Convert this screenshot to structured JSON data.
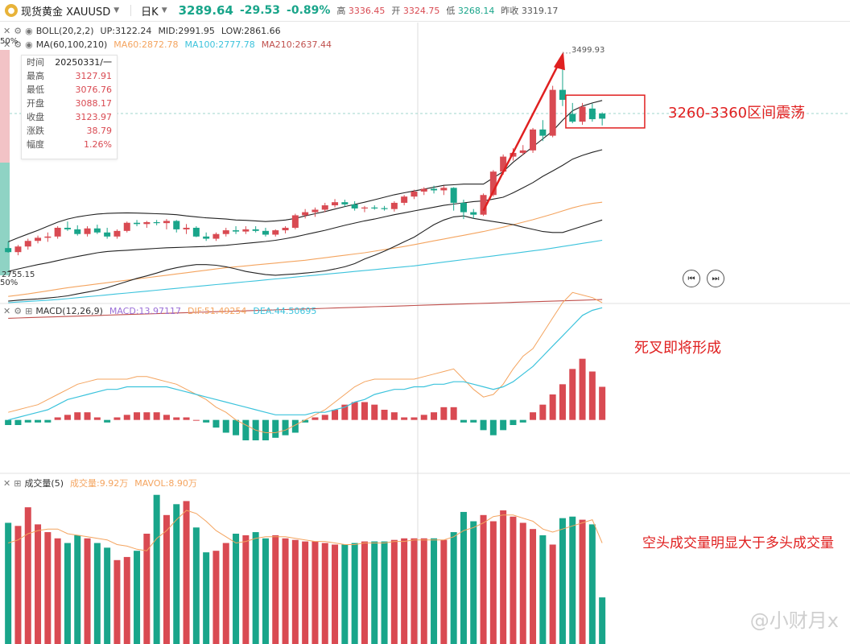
{
  "header": {
    "symbol": "现货黄金 XAUUSD",
    "period": "日K",
    "last_price": "3289.64",
    "change": "-29.53",
    "change_pct": "-0.89%",
    "high_label": "高",
    "high_value": "3336.45",
    "open_label": "开",
    "open_value": "3324.75",
    "low_label": "低",
    "low_value": "3268.14",
    "prev_close_label": "昨收",
    "prev_close_value": "3319.17"
  },
  "legends": {
    "boll": {
      "name": "BOLL(20,2,2)",
      "up": "UP:3122.24",
      "mid": "MID:2991.95",
      "low": "LOW:2861.66"
    },
    "ma": {
      "name": "MA(60,100,210)",
      "ma60": "MA60:2872.78",
      "ma100": "MA100:2777.78",
      "ma210": "MA210:2637.44"
    },
    "macd": {
      "name": "MACD(12,26,9)",
      "macd": "MACD:13.97117",
      "dif": "DIF:51.49254",
      "dea": "DEA:44.50695"
    },
    "vol": {
      "name": "成交量(5)",
      "vol": "成交量:9.92万",
      "mavol": "MAVOL:8.90万"
    }
  },
  "tooltip": {
    "rows": [
      {
        "k": "时间",
        "v": "20250331/一"
      },
      {
        "k": "最高",
        "v": "3127.91"
      },
      {
        "k": "最低",
        "v": "3076.76"
      },
      {
        "k": "开盘",
        "v": "3088.17"
      },
      {
        "k": "收盘",
        "v": "3123.97"
      },
      {
        "k": "涨跌",
        "v": "38.79"
      },
      {
        "k": "幅度",
        "v": "1.26%"
      }
    ]
  },
  "axis_labels": {
    "top_pct": "50%",
    "bottom_pct": "50%",
    "low_price": "2755.15",
    "high_price": "3499.93"
  },
  "annotations": {
    "range": "3260-3360区间震荡",
    "death_cross": "死叉即将形成",
    "volume_note": "空头成交量明显大于多头成交量"
  },
  "watermark": "@小财月x",
  "colors": {
    "up": "#d94a52",
    "down": "#19a58a",
    "annot": "#e02020",
    "ma60": "#f4a45f",
    "ma100": "#3cc3dc",
    "ma210": "#c0504d",
    "dif": "#f4a45f",
    "dea": "#3cc3dc"
  },
  "chart_data": [
    {
      "type": "candlestick",
      "title": "现货黄金 XAUUSD 日K",
      "ylim": [
        2755.15,
        3499.93
      ],
      "candles": [
        {
          "o": 2875,
          "h": 2895,
          "l": 2860,
          "c": 2862
        },
        {
          "o": 2862,
          "h": 2885,
          "l": 2852,
          "c": 2880
        },
        {
          "o": 2880,
          "h": 2905,
          "l": 2870,
          "c": 2898
        },
        {
          "o": 2898,
          "h": 2915,
          "l": 2890,
          "c": 2908
        },
        {
          "o": 2908,
          "h": 2925,
          "l": 2895,
          "c": 2912
        },
        {
          "o": 2912,
          "h": 2945,
          "l": 2905,
          "c": 2940
        },
        {
          "o": 2940,
          "h": 2960,
          "l": 2930,
          "c": 2935
        },
        {
          "o": 2935,
          "h": 2948,
          "l": 2915,
          "c": 2920
        },
        {
          "o": 2920,
          "h": 2945,
          "l": 2912,
          "c": 2938
        },
        {
          "o": 2938,
          "h": 2950,
          "l": 2920,
          "c": 2925
        },
        {
          "o": 2925,
          "h": 2940,
          "l": 2905,
          "c": 2912
        },
        {
          "o": 2912,
          "h": 2935,
          "l": 2905,
          "c": 2930
        },
        {
          "o": 2930,
          "h": 2960,
          "l": 2925,
          "c": 2956
        },
        {
          "o": 2956,
          "h": 2965,
          "l": 2945,
          "c": 2952
        },
        {
          "o": 2952,
          "h": 2962,
          "l": 2940,
          "c": 2958
        },
        {
          "o": 2958,
          "h": 2965,
          "l": 2948,
          "c": 2955
        },
        {
          "o": 2955,
          "h": 2968,
          "l": 2935,
          "c": 2962
        },
        {
          "o": 2962,
          "h": 2965,
          "l": 2925,
          "c": 2935
        },
        {
          "o": 2935,
          "h": 2952,
          "l": 2920,
          "c": 2940
        },
        {
          "o": 2940,
          "h": 2945,
          "l": 2910,
          "c": 2912
        },
        {
          "o": 2912,
          "h": 2925,
          "l": 2898,
          "c": 2905
        },
        {
          "o": 2905,
          "h": 2925,
          "l": 2898,
          "c": 2920
        },
        {
          "o": 2920,
          "h": 2940,
          "l": 2912,
          "c": 2932
        },
        {
          "o": 2932,
          "h": 2945,
          "l": 2920,
          "c": 2928
        },
        {
          "o": 2928,
          "h": 2945,
          "l": 2920,
          "c": 2935
        },
        {
          "o": 2935,
          "h": 2945,
          "l": 2925,
          "c": 2930
        },
        {
          "o": 2930,
          "h": 2940,
          "l": 2912,
          "c": 2918
        },
        {
          "o": 2918,
          "h": 2935,
          "l": 2912,
          "c": 2932
        },
        {
          "o": 2932,
          "h": 2945,
          "l": 2922,
          "c": 2940
        },
        {
          "o": 2940,
          "h": 2985,
          "l": 2935,
          "c": 2980
        },
        {
          "o": 2980,
          "h": 3000,
          "l": 2970,
          "c": 2990
        },
        {
          "o": 2990,
          "h": 3005,
          "l": 2975,
          "c": 2998
        },
        {
          "o": 2998,
          "h": 3020,
          "l": 2990,
          "c": 3012
        },
        {
          "o": 3012,
          "h": 3032,
          "l": 3005,
          "c": 3022
        },
        {
          "o": 3022,
          "h": 3030,
          "l": 3008,
          "c": 3015
        },
        {
          "o": 3015,
          "h": 3025,
          "l": 2995,
          "c": 3002
        },
        {
          "o": 3002,
          "h": 3010,
          "l": 2990,
          "c": 3005
        },
        {
          "o": 3005,
          "h": 3012,
          "l": 2998,
          "c": 3003
        },
        {
          "o": 3003,
          "h": 3010,
          "l": 2995,
          "c": 3000
        },
        {
          "o": 3000,
          "h": 3025,
          "l": 2992,
          "c": 3020
        },
        {
          "o": 3020,
          "h": 3045,
          "l": 3012,
          "c": 3040
        },
        {
          "o": 3040,
          "h": 3062,
          "l": 3032,
          "c": 3056
        },
        {
          "o": 3056,
          "h": 3070,
          "l": 3045,
          "c": 3065
        },
        {
          "o": 3065,
          "h": 3075,
          "l": 3050,
          "c": 3060
        },
        {
          "o": 3060,
          "h": 3075,
          "l": 3045,
          "c": 3068
        },
        {
          "o": 3068,
          "h": 3070,
          "l": 2995,
          "c": 3020
        },
        {
          "o": 3020,
          "h": 3030,
          "l": 2968,
          "c": 2990
        },
        {
          "o": 2990,
          "h": 3000,
          "l": 2970,
          "c": 2982
        },
        {
          "o": 2982,
          "h": 3050,
          "l": 2978,
          "c": 3045
        },
        {
          "o": 3045,
          "h": 3125,
          "l": 3040,
          "c": 3120
        },
        {
          "o": 3120,
          "h": 3175,
          "l": 3110,
          "c": 3168
        },
        {
          "o": 3168,
          "h": 3195,
          "l": 3155,
          "c": 3180
        },
        {
          "o": 3180,
          "h": 3205,
          "l": 3172,
          "c": 3188
        },
        {
          "o": 3188,
          "h": 3260,
          "l": 3180,
          "c": 3255
        },
        {
          "o": 3255,
          "h": 3285,
          "l": 3218,
          "c": 3235
        },
        {
          "o": 3235,
          "h": 3395,
          "l": 3230,
          "c": 3382
        },
        {
          "o": 3382,
          "h": 3499.93,
          "l": 3330,
          "c": 3350
        },
        {
          "o": 3305,
          "h": 3340,
          "l": 3275,
          "c": 3280
        },
        {
          "o": 3280,
          "h": 3340,
          "l": 3270,
          "c": 3328
        },
        {
          "o": 3322,
          "h": 3338,
          "l": 3280,
          "c": 3288
        },
        {
          "o": 3306,
          "h": 3310,
          "l": 3268,
          "c": 3289.64
        }
      ],
      "boll_up": [
        2895,
        2908,
        2920,
        2932,
        2945,
        2958,
        2968,
        2975,
        2980,
        2984,
        2986,
        2987,
        2988,
        2987,
        2986,
        2985,
        2984,
        2982,
        2978,
        2975,
        2972,
        2970,
        2968,
        2965,
        2964,
        2962,
        2960,
        2962,
        2965,
        2970,
        2978,
        2985,
        2992,
        3000,
        3008,
        3015,
        3022,
        3030,
        3038,
        3046,
        3052,
        3058,
        3064,
        3070,
        3076,
        3078,
        3080,
        3080,
        3080,
        3100,
        3120,
        3150,
        3175,
        3200,
        3225,
        3250,
        3285,
        3315,
        3330,
        3340,
        3348
      ],
      "boll_mid": [
        2800,
        2808,
        2815,
        2822,
        2828,
        2835,
        2842,
        2848,
        2854,
        2860,
        2864,
        2866,
        2868,
        2870,
        2872,
        2874,
        2876,
        2877,
        2878,
        2879,
        2880,
        2882,
        2884,
        2887,
        2890,
        2893,
        2896,
        2900,
        2905,
        2911,
        2918,
        2925,
        2932,
        2940,
        2948,
        2955,
        2962,
        2968,
        2975,
        2982,
        2988,
        2994,
        3000,
        3006,
        3012,
        3016,
        3020,
        3024,
        3026,
        3032,
        3038,
        3052,
        3068,
        3085,
        3105,
        3122,
        3140,
        3160,
        3172,
        3182,
        3190
      ],
      "boll_low": [
        2705,
        2708,
        2710,
        2712,
        2715,
        2718,
        2722,
        2728,
        2734,
        2740,
        2748,
        2758,
        2768,
        2778,
        2786,
        2795,
        2805,
        2812,
        2818,
        2822,
        2822,
        2820,
        2815,
        2808,
        2800,
        2795,
        2790,
        2788,
        2790,
        2792,
        2795,
        2798,
        2802,
        2808,
        2815,
        2825,
        2840,
        2852,
        2865,
        2880,
        2895,
        2910,
        2930,
        2950,
        2965,
        2975,
        2978,
        2970,
        2965,
        2960,
        2955,
        2950,
        2942,
        2935,
        2928,
        2925,
        2925,
        2935,
        2945,
        2955,
        2965
      ],
      "ma60": [
        2720,
        2724,
        2728,
        2733,
        2738,
        2743,
        2748,
        2752,
        2756,
        2760,
        2764,
        2768,
        2772,
        2776,
        2780,
        2784,
        2788,
        2792,
        2796,
        2800,
        2804,
        2808,
        2812,
        2815,
        2818,
        2821,
        2824,
        2827,
        2830,
        2833,
        2836,
        2840,
        2844,
        2848,
        2852,
        2856,
        2860,
        2865,
        2870,
        2875,
        2880,
        2886,
        2892,
        2898,
        2904,
        2910,
        2916,
        2922,
        2928,
        2935,
        2942,
        2950,
        2958,
        2966,
        2975,
        2984,
        2994,
        3004,
        3012,
        3018,
        3022
      ],
      "ma100": [
        2700,
        2702,
        2704,
        2706,
        2708,
        2710,
        2713,
        2716,
        2719,
        2722,
        2725,
        2728,
        2731,
        2734,
        2737,
        2740,
        2743,
        2746,
        2749,
        2752,
        2755,
        2758,
        2761,
        2764,
        2767,
        2770,
        2773,
        2776,
        2779,
        2782,
        2785,
        2788,
        2791,
        2794,
        2797,
        2800,
        2803,
        2806,
        2809,
        2812,
        2815,
        2818,
        2822,
        2826,
        2830,
        2834,
        2838,
        2842,
        2846,
        2850,
        2854,
        2858,
        2862,
        2866,
        2870,
        2875,
        2880,
        2885,
        2890,
        2895,
        2900
      ],
      "ma210": [
        2650,
        2651,
        2652,
        2653,
        2654,
        2655,
        2656,
        2657,
        2658,
        2659,
        2660,
        2661,
        2662,
        2663,
        2664,
        2665,
        2666,
        2667,
        2668,
        2669,
        2670,
        2671,
        2672,
        2673,
        2674,
        2675,
        2676,
        2677,
        2678,
        2679,
        2680,
        2681,
        2682,
        2683,
        2684,
        2685,
        2686,
        2687,
        2688,
        2689,
        2690,
        2691,
        2692,
        2693,
        2694,
        2695,
        2696,
        2697,
        2698,
        2699,
        2700,
        2701,
        2702,
        2703,
        2704,
        2705,
        2706,
        2707,
        2708,
        2709,
        2710
      ]
    },
    {
      "type": "bar",
      "title": "MACD(12,26,9)",
      "ylim": [
        -20,
        40
      ],
      "macd": [
        -2,
        -2,
        -1,
        -1,
        -1,
        1,
        2,
        3,
        3,
        1,
        -1,
        1,
        2,
        3,
        3,
        3,
        2,
        1,
        1,
        0,
        -1,
        -3,
        -5,
        -6,
        -8,
        -8,
        -8,
        -7,
        -6,
        -5,
        -1,
        1,
        2,
        4,
        6,
        7,
        7,
        6,
        4,
        3,
        1,
        1,
        2,
        3,
        5,
        5,
        -1,
        -1,
        -4,
        -6,
        -4,
        -2,
        -1,
        3,
        6,
        10,
        14,
        20,
        24,
        19,
        13
      ],
      "dif": [
        3,
        4,
        5,
        6,
        8,
        10,
        12,
        14,
        15,
        16,
        16,
        16,
        16,
        17,
        17,
        16,
        15,
        14,
        12,
        10,
        8,
        5,
        3,
        0,
        -2,
        -4,
        -5,
        -5,
        -4,
        -2,
        0,
        2,
        4,
        7,
        10,
        13,
        15,
        16,
        16,
        16,
        16,
        16,
        17,
        18,
        19,
        20,
        16,
        12,
        9,
        10,
        14,
        20,
        25,
        28,
        34,
        40,
        46,
        50,
        49,
        48,
        46
      ],
      "dea": [
        0,
        1,
        2,
        3,
        4,
        6,
        8,
        9,
        10,
        11,
        12,
        12,
        13,
        13,
        13,
        13,
        13,
        12,
        11,
        10,
        9,
        8,
        7,
        6,
        5,
        4,
        3,
        2,
        2,
        2,
        2,
        3,
        3,
        4,
        5,
        7,
        8,
        10,
        11,
        12,
        12,
        13,
        13,
        14,
        14,
        15,
        15,
        14,
        13,
        12,
        13,
        15,
        18,
        21,
        25,
        29,
        33,
        37,
        41,
        43,
        44
      ]
    },
    {
      "type": "bar",
      "title": "成交量(5)",
      "values": [
        7.8,
        7.6,
        8.8,
        7.7,
        7.2,
        6.8,
        6.5,
        7.0,
        6.8,
        6.5,
        6.2,
        5.4,
        5.6,
        6.0,
        7.1,
        9.6,
        8.3,
        9.0,
        9.2,
        7.5,
        5.9,
        6.0,
        6.5,
        7.1,
        7.0,
        7.2,
        6.8,
        7.0,
        6.8,
        6.7,
        6.6,
        6.6,
        6.5,
        6.4,
        6.4,
        6.5,
        6.6,
        6.6,
        6.6,
        6.7,
        6.8,
        6.8,
        6.8,
        6.8,
        6.7,
        7.2,
        8.5,
        7.9,
        8.3,
        7.9,
        8.6,
        8.2,
        7.8,
        7.4,
        7.0,
        6.4,
        8.1,
        8.2,
        8.0,
        7.7,
        3.0
      ],
      "mavol": [
        6.5,
        6.7,
        7.1,
        7.3,
        7.4,
        7.4,
        7.1,
        7.0,
        6.9,
        6.8,
        6.7,
        6.4,
        6.3,
        6.1,
        6.0,
        6.8,
        7.3,
        8.0,
        8.6,
        8.4,
        7.9,
        7.3,
        6.9,
        6.5,
        6.6,
        6.8,
        6.9,
        6.9,
        6.9,
        6.8,
        6.7,
        6.6,
        6.6,
        6.5,
        6.4,
        6.4,
        6.5,
        6.5,
        6.5,
        6.6,
        6.6,
        6.7,
        6.7,
        6.7,
        6.7,
        6.9,
        7.3,
        7.5,
        7.8,
        8.2,
        8.3,
        8.3,
        8.1,
        7.9,
        7.4,
        7.2,
        7.4,
        7.6,
        7.8,
        8.0,
        6.5
      ],
      "ylim": [
        0,
        10
      ]
    }
  ]
}
